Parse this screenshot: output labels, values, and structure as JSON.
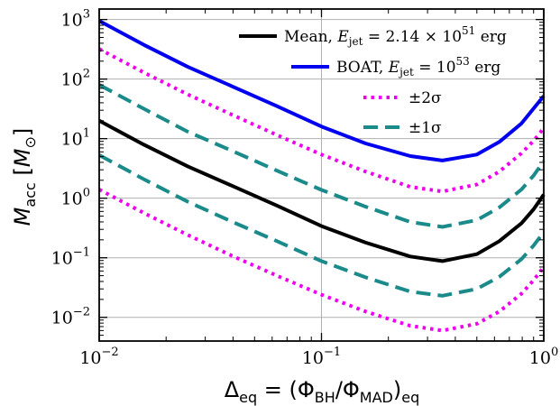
{
  "chart_data": {
    "type": "line",
    "x_scale": "log",
    "y_scale": "log",
    "xlim": [
      0.01,
      1.0
    ],
    "ylim": [
      0.004,
      1500
    ],
    "grid": "major",
    "legend_position": "top-right",
    "xlabel": {
      "prefix": "Δ",
      "prefix_sub": "eq",
      "mid": " = (Φ",
      "sub1": "BH",
      "mid2": "/Φ",
      "sub2": "MAD",
      "suffix": ")",
      "suffix_sub": "eq"
    },
    "ylabel": {
      "main": "M",
      "sub": "acc",
      "open": " [",
      "unit": "M",
      "unit_sub": "⊙",
      "close": "]"
    },
    "x_ticks": [
      {
        "value": 0.01,
        "base": "10",
        "exp": "−2"
      },
      {
        "value": 0.1,
        "base": "10",
        "exp": "−1"
      },
      {
        "value": 1.0,
        "base": "10",
        "exp": "0"
      }
    ],
    "y_ticks": [
      {
        "value": 0.01,
        "base": "10",
        "exp": "−2"
      },
      {
        "value": 0.1,
        "base": "10",
        "exp": "−1"
      },
      {
        "value": 1,
        "base": "10",
        "exp": "0"
      },
      {
        "value": 10,
        "base": "10",
        "exp": "1"
      },
      {
        "value": 100,
        "base": "10",
        "exp": "2"
      },
      {
        "value": 1000,
        "base": "10",
        "exp": "3"
      }
    ],
    "x": [
      0.01,
      0.0158,
      0.0251,
      0.0398,
      0.0631,
      0.1,
      0.158,
      0.251,
      0.35,
      0.5,
      0.631,
      0.794,
      0.9,
      1.0
    ],
    "series": [
      {
        "id": "boat",
        "color": "#0000ee",
        "style": "solid",
        "values": [
          950,
          380,
          160,
          75,
          35,
          16,
          8.3,
          5.1,
          4.3,
          5.4,
          8.8,
          18,
          32,
          52
        ]
      },
      {
        "id": "plus2sigma",
        "color": "#ee00ee",
        "style": "dotted",
        "values": [
          320,
          130,
          55,
          25,
          11.5,
          5.4,
          2.8,
          1.55,
          1.3,
          1.7,
          2.8,
          5.7,
          9.2,
          15
        ]
      },
      {
        "id": "plus1sigma",
        "color": "#1a8a8a",
        "style": "dashed",
        "values": [
          80,
          32,
          13,
          6.2,
          2.9,
          1.38,
          0.72,
          0.4,
          0.33,
          0.43,
          0.7,
          1.4,
          2.4,
          4.2
        ]
      },
      {
        "id": "mean",
        "color": "#000000",
        "style": "solid",
        "values": [
          20,
          8,
          3.4,
          1.6,
          0.75,
          0.34,
          0.18,
          0.105,
          0.088,
          0.115,
          0.19,
          0.38,
          0.65,
          1.15
        ]
      },
      {
        "id": "minus1sigma",
        "color": "#1a8a8a",
        "style": "dashed",
        "values": [
          5.3,
          2.1,
          0.87,
          0.4,
          0.19,
          0.088,
          0.047,
          0.027,
          0.023,
          0.03,
          0.048,
          0.095,
          0.16,
          0.27
        ]
      },
      {
        "id": "minus2sigma",
        "color": "#ee00ee",
        "style": "dotted",
        "values": [
          1.4,
          0.57,
          0.24,
          0.107,
          0.05,
          0.024,
          0.0125,
          0.0072,
          0.006,
          0.0078,
          0.0125,
          0.025,
          0.042,
          0.07
        ]
      }
    ],
    "legend": [
      {
        "series": "mean",
        "color": "#000000",
        "style": "solid",
        "pre": "Mean, ",
        "e": "E",
        "e_sub": "jet",
        "mid": " = 2.14 × 10",
        "exp": "51",
        "post": " erg"
      },
      {
        "series": "boat",
        "color": "#0000ee",
        "style": "solid",
        "pre": "BOAT, ",
        "e": "E",
        "e_sub": "jet",
        "mid": " = 10",
        "exp": "53",
        "post": " erg"
      },
      {
        "series": "2sigma",
        "color": "#ee00ee",
        "style": "dotted",
        "pre": "±2σ"
      },
      {
        "series": "1sigma",
        "color": "#1a8a8a",
        "style": "dashed",
        "pre": "±1σ"
      }
    ]
  }
}
